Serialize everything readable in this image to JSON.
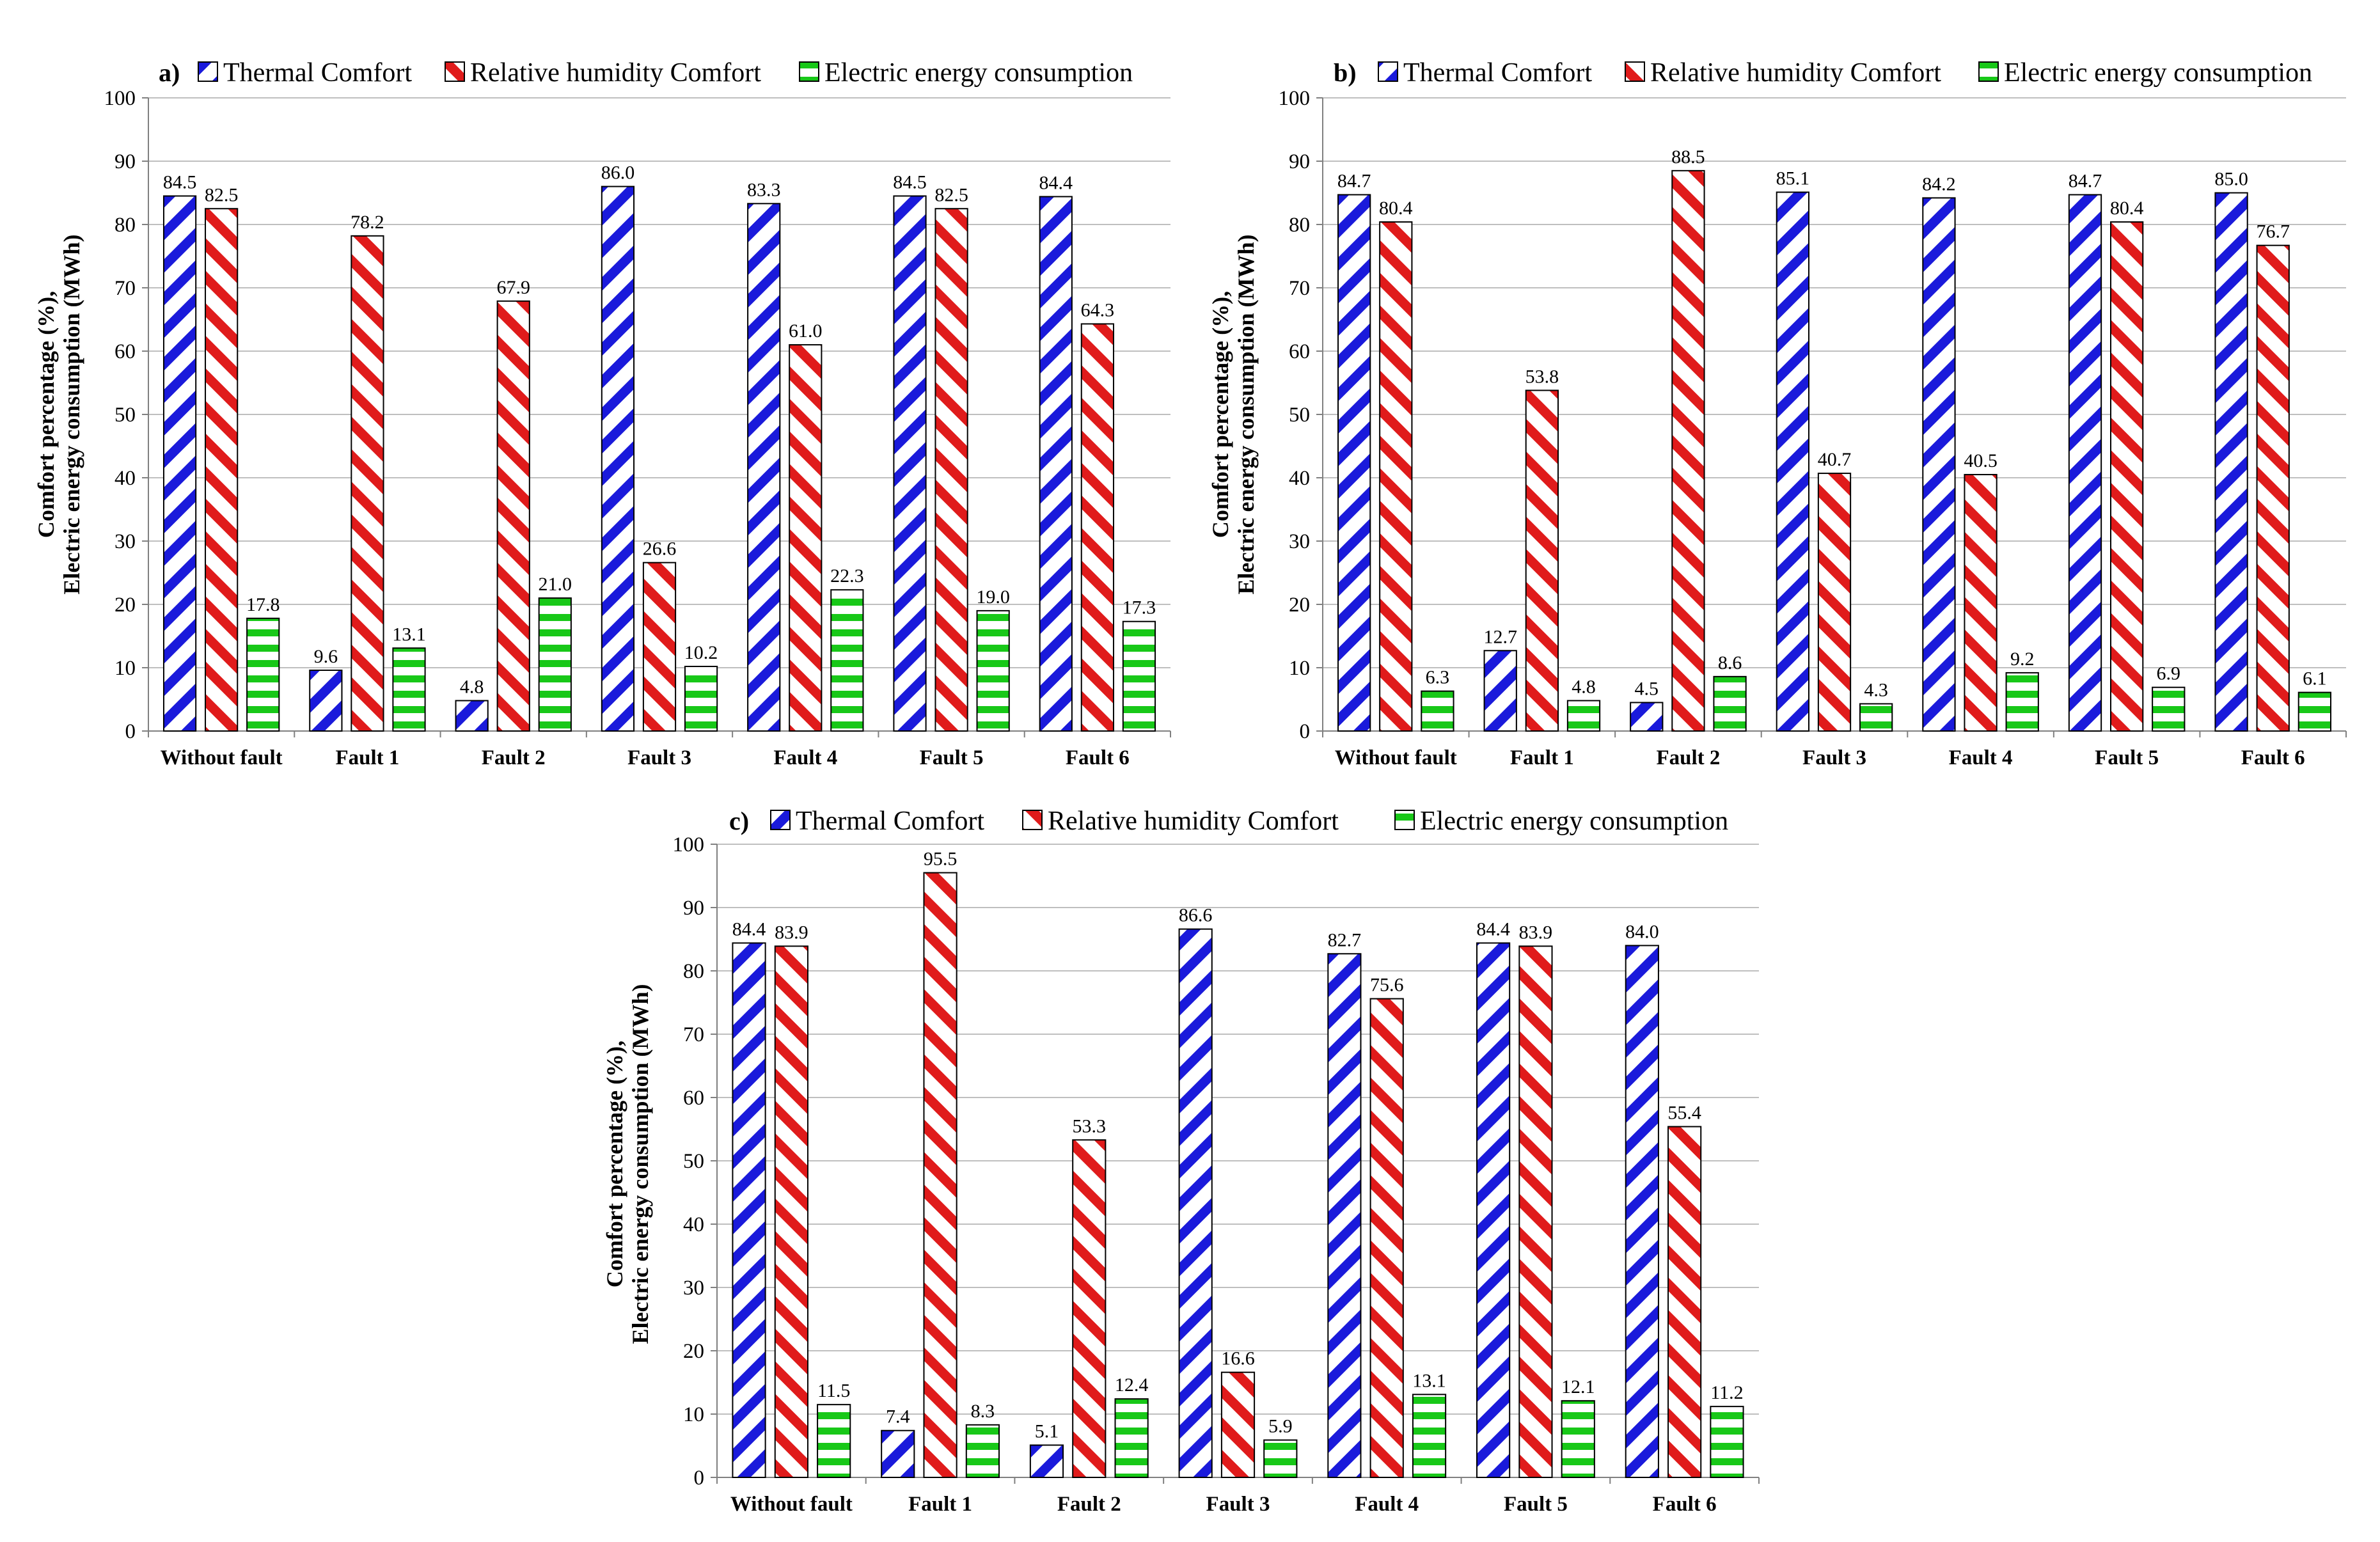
{
  "legend": {
    "thermal": "Thermal Comfort",
    "humidity": "Relative humidity Comfort",
    "energy": "Electric energy consumption"
  },
  "colors": {
    "thermal": "#1a1adb",
    "humidity": "#e01b1b",
    "energy": "#18c818",
    "grid": "#bfbfbf",
    "axis": "#808080"
  },
  "chart_data": [
    {
      "panel": "a)",
      "type": "bar",
      "ylabel_line1": "Comfort percentage (%),",
      "ylabel_line2": "Electric energy consumption  (MWh)",
      "ylim": [
        0,
        100
      ],
      "yticks": [
        "0",
        "10",
        "20",
        "30",
        "40",
        "50",
        "60",
        "70",
        "80",
        "90",
        "100"
      ],
      "categories": [
        "Without fault",
        "Fault 1",
        "Fault 2",
        "Fault 3",
        "Fault 4",
        "Fault 5",
        "Fault 6"
      ],
      "series": [
        {
          "key": "thermal",
          "name": "Thermal Comfort",
          "values": [
            84.5,
            9.6,
            4.8,
            86.0,
            83.3,
            84.5,
            84.4
          ],
          "labels": [
            "84.5",
            "9.6",
            "4.8",
            "86.0",
            "83.3",
            "84.5",
            "84.4"
          ]
        },
        {
          "key": "humidity",
          "name": "Relative humidity Comfort",
          "values": [
            82.5,
            78.2,
            67.9,
            26.6,
            61.0,
            82.5,
            64.3
          ],
          "labels": [
            "82.5",
            "78.2",
            "67.9",
            "26.6",
            "61.0",
            "82.5",
            "64.3"
          ]
        },
        {
          "key": "energy",
          "name": "Electric energy consumption",
          "values": [
            17.8,
            13.1,
            21.0,
            10.2,
            22.3,
            19.0,
            17.3
          ],
          "labels": [
            "17.8",
            "13.1",
            "21.0",
            "10.2",
            "22.3",
            "19.0",
            "17.3"
          ]
        }
      ]
    },
    {
      "panel": "b)",
      "type": "bar",
      "ylabel_line1": "Comfort percentage (%),",
      "ylabel_line2": "Electric energy consumption  (MWh)",
      "ylim": [
        0,
        100
      ],
      "yticks": [
        "0",
        "10",
        "20",
        "30",
        "40",
        "50",
        "60",
        "70",
        "80",
        "90",
        "100"
      ],
      "categories": [
        "Without fault",
        "Fault 1",
        "Fault 2",
        "Fault 3",
        "Fault 4",
        "Fault 5",
        "Fault 6"
      ],
      "series": [
        {
          "key": "thermal",
          "name": "Thermal Comfort",
          "values": [
            84.7,
            12.7,
            4.5,
            85.1,
            84.2,
            84.7,
            85.0
          ],
          "labels": [
            "84.7",
            "12.7",
            "4.5",
            "85.1",
            "84.2",
            "84.7",
            "85.0"
          ]
        },
        {
          "key": "humidity",
          "name": "Relative humidity Comfort",
          "values": [
            80.4,
            53.8,
            88.5,
            40.7,
            40.5,
            80.4,
            76.7
          ],
          "labels": [
            "80.4",
            "53.8",
            "88.5",
            "40.7",
            "40.5",
            "80.4",
            "76.7"
          ]
        },
        {
          "key": "energy",
          "name": "Electric energy consumption",
          "values": [
            6.3,
            4.8,
            8.6,
            4.3,
            9.2,
            6.9,
            6.1
          ],
          "labels": [
            "6.3",
            "4.8",
            "8.6",
            "4.3",
            "9.2",
            "6.9",
            "6.1"
          ]
        }
      ]
    },
    {
      "panel": "c)",
      "type": "bar",
      "ylabel_line1": "Comfort percentage (%),",
      "ylabel_line2": "Electric energy consumption  (MWh)",
      "ylim": [
        0,
        100
      ],
      "yticks": [
        "0",
        "10",
        "20",
        "30",
        "40",
        "50",
        "60",
        "70",
        "80",
        "90",
        "100"
      ],
      "categories": [
        "Without fault",
        "Fault 1",
        "Fault 2",
        "Fault 3",
        "Fault 4",
        "Fault 5",
        "Fault 6"
      ],
      "series": [
        {
          "key": "thermal",
          "name": "Thermal Comfort",
          "values": [
            84.4,
            7.4,
            5.1,
            86.6,
            82.7,
            84.4,
            84.0
          ],
          "labels": [
            "84.4",
            "7.4",
            "5.1",
            "86.6",
            "82.7",
            "84.4",
            "84.0"
          ]
        },
        {
          "key": "humidity",
          "name": "Relative humidity Comfort",
          "values": [
            83.9,
            95.5,
            53.3,
            16.6,
            75.6,
            83.9,
            55.4
          ],
          "labels": [
            "83.9",
            "95.5",
            "53.3",
            "16.6",
            "75.6",
            "83.9",
            "55.4"
          ]
        },
        {
          "key": "energy",
          "name": "Electric energy consumption",
          "values": [
            11.5,
            8.3,
            12.4,
            5.9,
            13.1,
            12.1,
            11.2
          ],
          "labels": [
            "11.5",
            "8.3",
            "12.4",
            "5.9",
            "13.1",
            "12.1",
            "11.2"
          ]
        }
      ]
    }
  ]
}
